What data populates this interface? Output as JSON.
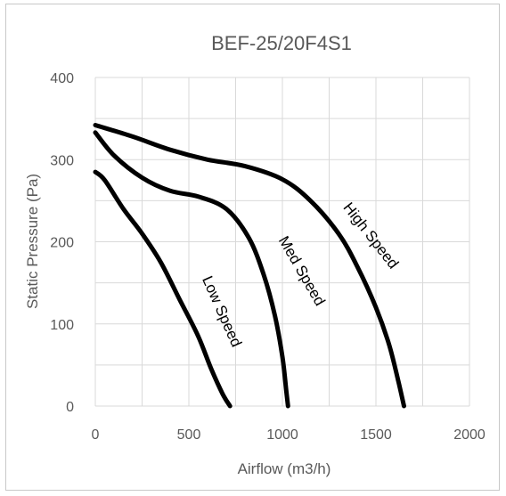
{
  "chart_data": {
    "type": "line",
    "title": "BEF-25/20F4S1",
    "xlabel": "Airflow (m3/h)",
    "ylabel": "Static Pressure (Pa)",
    "xlim": [
      0,
      2000
    ],
    "ylim": [
      0,
      400
    ],
    "x_ticks": [
      0,
      500,
      1000,
      1500,
      2000
    ],
    "y_ticks": [
      0,
      100,
      200,
      300,
      400
    ],
    "x_tick_labels": [
      "0",
      "500",
      "1000",
      "1500",
      "2000"
    ],
    "y_tick_labels": [
      "0",
      "100",
      "200",
      "300",
      "400"
    ],
    "grid": true,
    "x_minor_step": 250,
    "y_minor_step": 50,
    "legend": "none",
    "series": [
      {
        "name": "Low Speed",
        "x": [
          0,
          50,
          150,
          250,
          350,
          450,
          550,
          620,
          680,
          720
        ],
        "y": [
          285,
          275,
          240,
          210,
          175,
          130,
          85,
          45,
          15,
          0
        ]
      },
      {
        "name": "Med Speed",
        "x": [
          0,
          100,
          250,
          400,
          550,
          700,
          820,
          900,
          960,
          1000,
          1020,
          1030
        ],
        "y": [
          333,
          305,
          278,
          262,
          255,
          240,
          205,
          160,
          110,
          60,
          20,
          0
        ]
      },
      {
        "name": "High Speed",
        "x": [
          0,
          200,
          400,
          600,
          800,
          1000,
          1150,
          1300,
          1400,
          1500,
          1570,
          1620,
          1650
        ],
        "y": [
          342,
          328,
          312,
          300,
          292,
          276,
          250,
          210,
          170,
          120,
          75,
          30,
          0
        ]
      }
    ]
  }
}
